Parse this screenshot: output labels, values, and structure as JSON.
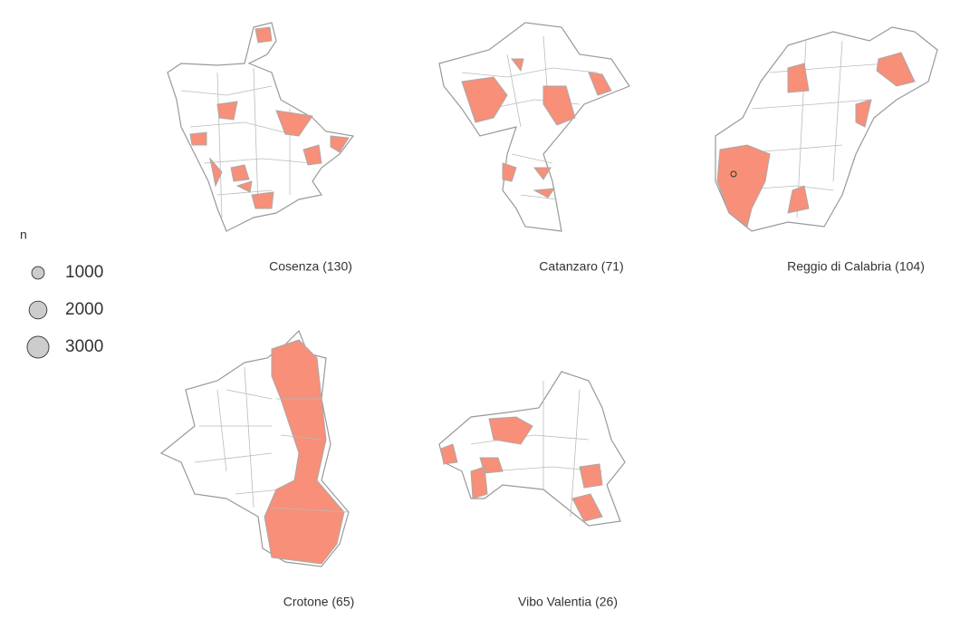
{
  "legend": {
    "title": "n",
    "sizes": [
      1000,
      2000,
      3000
    ]
  },
  "panels": [
    {
      "label": "Cosenza (130)"
    },
    {
      "label": "Catanzaro (71)"
    },
    {
      "label": "Reggio di Calabria (104)"
    },
    {
      "label": "Crotone (65)"
    },
    {
      "label": "Vibo Valentia (26)"
    }
  ]
}
